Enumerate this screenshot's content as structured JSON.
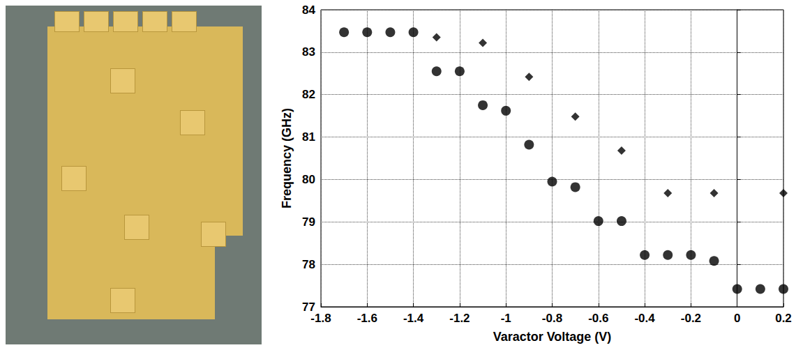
{
  "chart_data": {
    "type": "scatter",
    "xlabel": "Varactor Voltage (V)",
    "ylabel": "Frequency (GHz)",
    "xlim": [
      -1.8,
      0.2
    ],
    "xticks": [
      -1.8,
      -1.6,
      -1.4,
      -1.2,
      -1,
      -0.8,
      -0.6,
      -0.4,
      -0.2,
      0,
      0.2
    ],
    "ylim": [
      77,
      84
    ],
    "yticks": [
      77,
      78,
      79,
      80,
      81,
      82,
      83,
      84
    ],
    "grid": true,
    "series": [
      {
        "marker": "circle",
        "color": "#000000",
        "x": [
          -1.7,
          -1.6,
          -1.5,
          -1.4,
          -1.3,
          -1.2,
          -1.1,
          -1.0,
          -0.9,
          -0.8,
          -0.7,
          -0.6,
          -0.5,
          -0.4,
          -0.3,
          -0.2,
          -0.1,
          0,
          0.1,
          0.2
        ],
        "values": [
          83.47,
          83.47,
          83.47,
          83.47,
          82.55,
          82.55,
          81.75,
          81.62,
          80.82,
          79.95,
          79.82,
          79.02,
          79.02,
          78.22,
          78.22,
          78.22,
          78.08,
          77.42,
          77.42,
          77.42
        ]
      },
      {
        "marker": "diamond",
        "color": "#000000",
        "x": [
          -1.3,
          -1.1,
          -0.9,
          -0.7,
          -0.5,
          -0.3,
          -0.1,
          0.2
        ],
        "values": [
          83.35,
          83.22,
          82.42,
          81.48,
          80.68,
          79.68,
          79.68,
          79.68
        ]
      }
    ]
  }
}
